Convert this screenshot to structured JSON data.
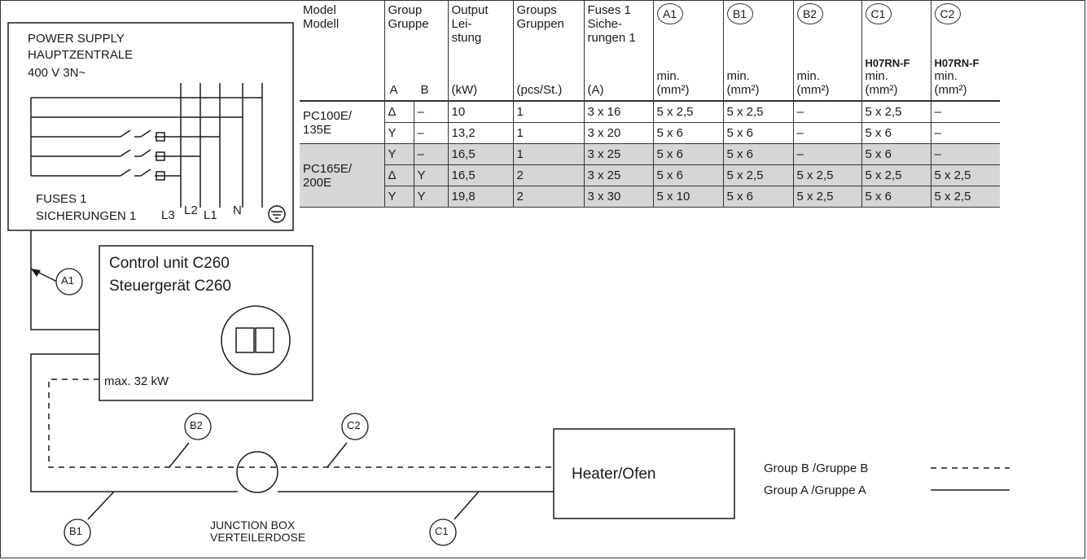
{
  "power_supply": {
    "title_en": "POWER SUPPLY",
    "title_de": "HAUPTZENTRALE",
    "voltage": "400 V 3N~",
    "fuses_en": "FUSES 1",
    "fuses_de": "SICHERUNGEN 1",
    "terminals": [
      "L3",
      "L2",
      "L1",
      "N"
    ]
  },
  "control_unit": {
    "line1": "Control unit C260",
    "line2": "Steuergerät C260",
    "max": "max. 32 kW",
    "manual_icon": "book-icon"
  },
  "heater": {
    "label": "Heater/Ofen"
  },
  "junction": {
    "line1": "JUNCTION BOX",
    "line2": "VERTEILERDOSE"
  },
  "cable_markers": {
    "a1": "A1",
    "b1": "B1",
    "b2": "B2",
    "c1": "C1",
    "c2": "C2"
  },
  "legend": {
    "group_b": "Group B /Gruppe B",
    "group_a": "Group A /Gruppe A"
  },
  "table": {
    "headers": {
      "model": [
        "Model",
        "Modell"
      ],
      "group": [
        "Group",
        "Gruppe"
      ],
      "group_a": "A",
      "group_b": "B",
      "output": [
        "Output",
        "Lei-",
        "stung"
      ],
      "output_unit": "(kW)",
      "groups": [
        "Groups",
        "Gruppen"
      ],
      "groups_unit": "(pcs/St.)",
      "fuses": [
        "Fuses 1",
        "Siche-",
        "rungen 1"
      ],
      "fuses_unit": "(A)",
      "a1": "A1",
      "b1": "B1",
      "b2": "B2",
      "c1": "C1",
      "c2": "C2",
      "min": "min.",
      "mm": "(mm²)",
      "h07": "H07RN-F"
    },
    "models": [
      "PC100E/ 135E",
      "PC165E/ 200E"
    ],
    "rows": [
      [
        "Δ",
        "–",
        "10",
        "1",
        "3 x 16",
        "5 x 2,5",
        "5 x 2,5",
        "–",
        "5 x 2,5",
        "–"
      ],
      [
        "Y",
        "–",
        "13,2",
        "1",
        "3 x 20",
        "5 x 6",
        "5 x 6",
        "–",
        "5 x 6",
        "–"
      ],
      [
        "Y",
        "–",
        "16,5",
        "1",
        "3 x 25",
        "5 x 6",
        "5 x 6",
        "–",
        "5 x 6",
        "–"
      ],
      [
        "Δ",
        "Y",
        "16,5",
        "2",
        "3 x 25",
        "5 x 6",
        "5 x 2,5",
        "5 x 2,5",
        "5 x 2,5",
        "5 x 2,5"
      ],
      [
        "Y",
        "Y",
        "19,8",
        "2",
        "3 x 30",
        "5 x 10",
        "5 x 6",
        "5 x 2,5",
        "5 x 6",
        "5 x 2,5"
      ]
    ]
  }
}
